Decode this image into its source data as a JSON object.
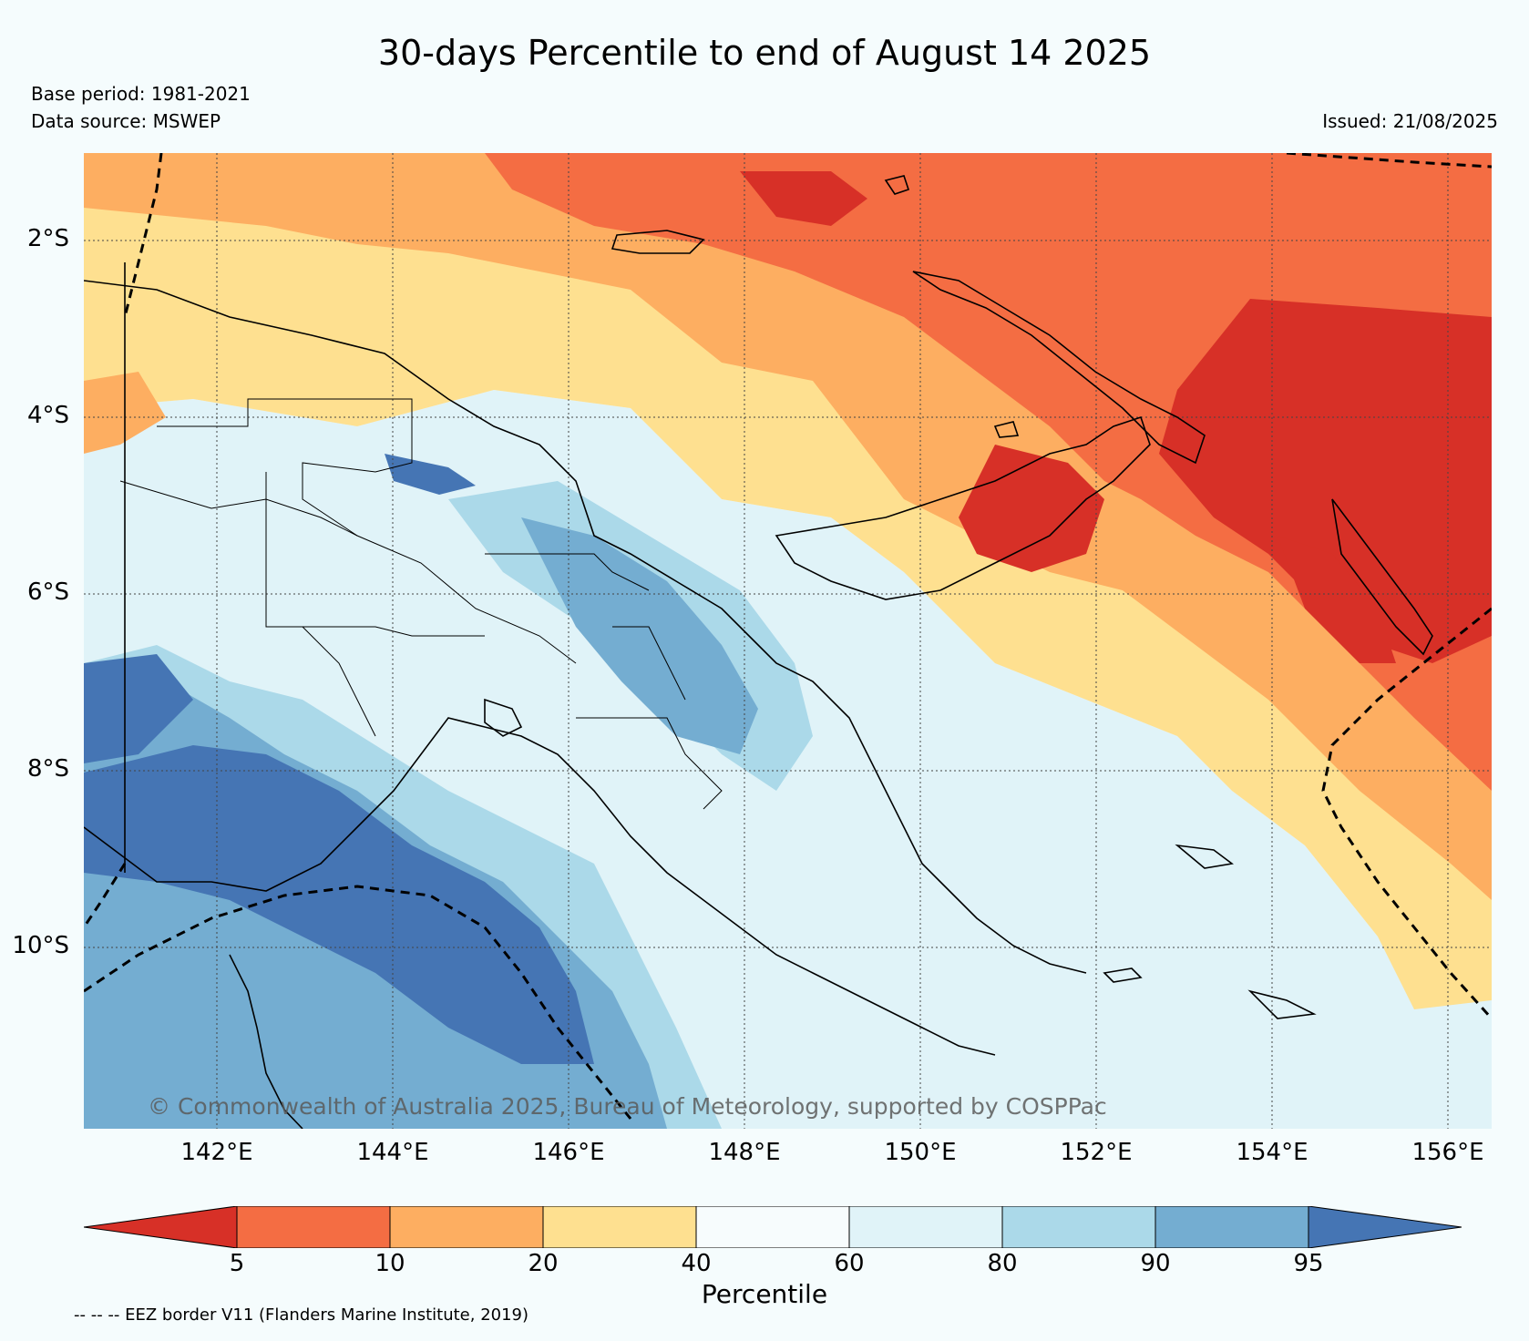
{
  "title": "30-days Percentile to end of August 14 2025",
  "base_period": "Base period: 1981-2021",
  "data_source": "Data source: MSWEP",
  "issued": "Issued: 21/08/2025",
  "copyright": "© Commonwealth of Australia 2025, Bureau of Meteorology, supported by COSPPac",
  "footer": "-- -- -- EEZ border V11 (Flanders Marine Institute, 2019)",
  "lat_labels": [
    "2°S",
    "4°S",
    "6°S",
    "8°S",
    "10°S"
  ],
  "lon_labels": [
    "142°E",
    "144°E",
    "146°E",
    "148°E",
    "150°E",
    "152°E",
    "154°E",
    "156°E"
  ],
  "colorbar": {
    "label": "Percentile",
    "ticks": [
      "5",
      "10",
      "20",
      "40",
      "60",
      "80",
      "90",
      "95"
    ],
    "colors": [
      "#d73027",
      "#f46d43",
      "#fdae61",
      "#fee090",
      "#f7fcfd",
      "#e0f3f8",
      "#abd9e9",
      "#74add1",
      "#4575b4"
    ]
  }
}
